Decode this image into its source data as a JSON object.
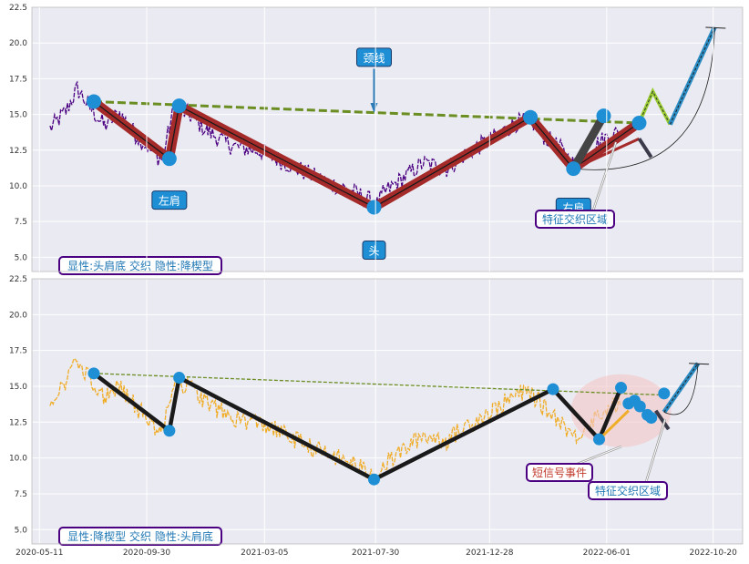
{
  "colors": {
    "panel_bg": "#eaeaf2",
    "grid": "#ffffff",
    "price_top": "#4b0082",
    "price_bottom": "#f0ad28",
    "neckline": "#6b8e23",
    "pattern_red": "#a52a2a",
    "pattern_black": "#1a1a1a",
    "marker": "#1e8fd5",
    "forecast_blue": "#2b8cc4",
    "forecast_green": "#9acd32",
    "label_fill": "#1e8fd5",
    "box_border": "#4b0082",
    "box_text_blue": "#1f77b4",
    "box_text_red": "#c0392b",
    "ellipse": "#f4c6c6"
  },
  "chart_data": [
    {
      "type": "line",
      "panel": "top",
      "ylim": [
        4.0,
        22.5
      ],
      "yticks": [
        "5.0",
        "7.5",
        "10.0",
        "12.5",
        "15.0",
        "17.5",
        "20.0",
        "22.5"
      ],
      "ytick_values": [
        5.0,
        7.5,
        10.0,
        12.5,
        15.0,
        17.5,
        20.0,
        22.5
      ],
      "x_range": [
        "2020-05-01",
        "2022-11-28"
      ],
      "price_anchors": [
        [
          "2020-05-25",
          14.0
        ],
        [
          "2020-06-15",
          15.2
        ],
        [
          "2020-06-30",
          16.8
        ],
        [
          "2020-07-15",
          15.6
        ],
        [
          "2020-08-05",
          14.2
        ],
        [
          "2020-08-25",
          15.1
        ],
        [
          "2020-09-15",
          13.6
        ],
        [
          "2020-10-05",
          12.5
        ],
        [
          "2020-10-20",
          11.8
        ],
        [
          "2020-11-05",
          15.4
        ],
        [
          "2020-11-25",
          15.0
        ],
        [
          "2020-12-20",
          13.8
        ],
        [
          "2021-01-20",
          12.8
        ],
        [
          "2021-03-01",
          12.4
        ],
        [
          "2021-04-10",
          11.4
        ],
        [
          "2021-05-20",
          10.4
        ],
        [
          "2021-06-30",
          9.6
        ],
        [
          "2021-08-01",
          8.7
        ],
        [
          "2021-08-10",
          9.5
        ],
        [
          "2021-09-01",
          10.4
        ],
        [
          "2021-10-01",
          11.6
        ],
        [
          "2021-11-01",
          11.2
        ],
        [
          "2021-12-01",
          12.4
        ],
        [
          "2022-01-01",
          13.3
        ],
        [
          "2022-02-01",
          14.4
        ],
        [
          "2022-02-20",
          14.6
        ],
        [
          "2022-03-10",
          13.5
        ],
        [
          "2022-04-01",
          12.6
        ],
        [
          "2022-04-20",
          11.4
        ],
        [
          "2022-05-10",
          12.6
        ],
        [
          "2022-06-01",
          13.4
        ],
        [
          "2022-06-20",
          13.8
        ]
      ],
      "neckline": [
        [
          "2020-07-22",
          15.9
        ],
        [
          "2022-07-14",
          14.4
        ]
      ],
      "pattern": [
        [
          "2020-07-22",
          15.9
        ],
        [
          "2020-10-30",
          11.9
        ],
        [
          "2020-11-12",
          15.6
        ],
        [
          "2021-07-28",
          8.5
        ],
        [
          "2022-02-20",
          14.8
        ],
        [
          "2022-04-18",
          11.2
        ],
        [
          "2022-07-14",
          14.4
        ]
      ],
      "markers": [
        [
          "2020-07-22",
          15.9
        ],
        [
          "2020-10-30",
          11.9
        ],
        [
          "2020-11-12",
          15.6
        ],
        [
          "2021-07-28",
          8.5
        ],
        [
          "2022-02-20",
          14.8
        ],
        [
          "2022-04-18",
          11.2
        ],
        [
          "2022-05-28",
          14.9
        ],
        [
          "2022-07-14",
          14.4
        ]
      ],
      "black_leg": [
        [
          "2022-04-18",
          11.2
        ],
        [
          "2022-05-28",
          14.9
        ]
      ],
      "forecast_green": [
        [
          "2022-07-14",
          14.4
        ],
        [
          "2022-08-01",
          16.6
        ],
        [
          "2022-08-24",
          14.3
        ]
      ],
      "forecast_blue": [
        [
          "2022-08-24",
          14.3
        ],
        [
          "2022-10-22",
          21.1
        ]
      ],
      "labels": [
        {
          "text": "颈线",
          "date": "2021-07-28",
          "value": 19.0
        },
        {
          "text": "左肩",
          "date": "2020-10-30",
          "value": 9.0
        },
        {
          "text": "头",
          "date": "2021-07-28",
          "value": 5.5
        },
        {
          "text": "右肩",
          "date": "2022-04-18",
          "value": 8.5
        }
      ],
      "boxes": [
        {
          "text": "特征交织区域",
          "color": "blue"
        },
        {
          "text": "显性:头肩底 交织 隐性:降楔型",
          "color": "blue"
        }
      ]
    },
    {
      "type": "line",
      "panel": "bottom",
      "ylim": [
        4.0,
        22.5
      ],
      "yticks": [
        "5.0",
        "7.5",
        "10.0",
        "12.5",
        "15.0",
        "17.5",
        "20.0",
        "22.5"
      ],
      "ytick_values": [
        5.0,
        7.5,
        10.0,
        12.5,
        15.0,
        17.5,
        20.0,
        22.5
      ],
      "x_range": [
        "2020-05-01",
        "2022-11-28"
      ],
      "xticks": [
        "2020-05-11",
        "2020-09-30",
        "2021-03-05",
        "2021-07-30",
        "2021-12-28",
        "2022-06-01",
        "2022-10-20"
      ],
      "price_anchors": [
        [
          "2020-05-25",
          14.0
        ],
        [
          "2020-06-15",
          15.2
        ],
        [
          "2020-06-30",
          16.8
        ],
        [
          "2020-07-15",
          15.6
        ],
        [
          "2020-08-05",
          14.2
        ],
        [
          "2020-08-25",
          15.1
        ],
        [
          "2020-09-15",
          13.6
        ],
        [
          "2020-10-05",
          12.5
        ],
        [
          "2020-10-20",
          11.8
        ],
        [
          "2020-11-05",
          15.4
        ],
        [
          "2020-11-25",
          15.0
        ],
        [
          "2020-12-20",
          13.8
        ],
        [
          "2021-01-20",
          12.8
        ],
        [
          "2021-03-01",
          12.4
        ],
        [
          "2021-04-10",
          11.4
        ],
        [
          "2021-05-20",
          10.4
        ],
        [
          "2021-06-30",
          9.6
        ],
        [
          "2021-08-01",
          8.7
        ],
        [
          "2021-08-10",
          9.5
        ],
        [
          "2021-09-01",
          10.4
        ],
        [
          "2021-10-01",
          11.6
        ],
        [
          "2021-11-01",
          11.2
        ],
        [
          "2021-12-01",
          12.4
        ],
        [
          "2022-01-01",
          13.3
        ],
        [
          "2022-02-01",
          14.4
        ],
        [
          "2022-02-20",
          14.6
        ],
        [
          "2022-03-10",
          13.5
        ],
        [
          "2022-04-01",
          12.6
        ],
        [
          "2022-04-20",
          11.4
        ],
        [
          "2022-05-10",
          12.6
        ],
        [
          "2022-06-01",
          13.4
        ],
        [
          "2022-06-20",
          13.8
        ]
      ],
      "neckline": [
        [
          "2020-07-22",
          15.9
        ],
        [
          "2022-08-10",
          14.4
        ]
      ],
      "pattern": [
        [
          "2020-07-22",
          15.9
        ],
        [
          "2020-10-30",
          11.9
        ],
        [
          "2020-11-12",
          15.6
        ],
        [
          "2021-07-28",
          8.5
        ],
        [
          "2022-03-22",
          14.8
        ],
        [
          "2022-05-22",
          11.3
        ],
        [
          "2022-06-20",
          14.9
        ]
      ],
      "markers": [
        [
          "2020-07-22",
          15.9
        ],
        [
          "2020-10-30",
          11.9
        ],
        [
          "2020-11-12",
          15.6
        ],
        [
          "2021-07-28",
          8.5
        ],
        [
          "2022-03-22",
          14.8
        ],
        [
          "2022-05-22",
          11.3
        ],
        [
          "2022-06-20",
          14.9
        ],
        [
          "2022-06-30",
          13.8
        ],
        [
          "2022-07-08",
          14.0
        ],
        [
          "2022-07-15",
          13.6
        ],
        [
          "2022-07-25",
          13.0
        ],
        [
          "2022-07-30",
          12.8
        ],
        [
          "2022-08-16",
          14.5
        ]
      ],
      "forecast_blue": [
        [
          "2022-08-16",
          13.2
        ],
        [
          "2022-09-30",
          16.6
        ]
      ],
      "boxes": [
        {
          "text": "短信号事件",
          "color": "red"
        },
        {
          "text": "特征交织区域",
          "color": "blue"
        },
        {
          "text": "显性:降楔型 交织 隐性:头肩底",
          "color": "blue"
        }
      ]
    }
  ]
}
